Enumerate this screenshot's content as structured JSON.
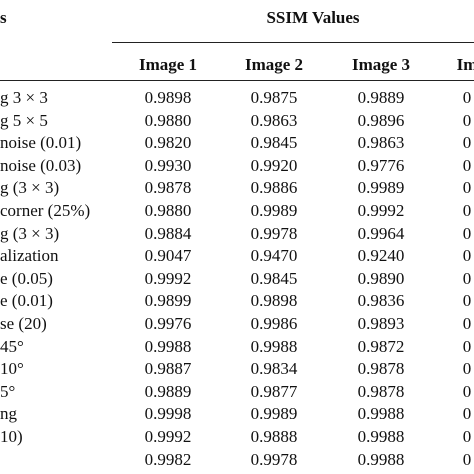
{
  "table": {
    "header": {
      "first": "s",
      "span": "SSIM Values"
    },
    "columns": [
      "Image 1",
      "Image 2",
      "Image 3",
      "Im"
    ],
    "rows": [
      {
        "label": "g 3 × 3",
        "values": [
          "0.9898",
          "0.9875",
          "0.9889",
          "0"
        ]
      },
      {
        "label": "g 5 × 5",
        "values": [
          "0.9880",
          "0.9863",
          "0.9896",
          "0"
        ]
      },
      {
        "label": "noise (0.01)",
        "values": [
          "0.9820",
          "0.9845",
          "0.9863",
          "0"
        ]
      },
      {
        "label": "noise (0.03)",
        "values": [
          "0.9930",
          "0.9920",
          "0.9776",
          "0"
        ]
      },
      {
        "label": "g (3 × 3)",
        "values": [
          "0.9878",
          "0.9886",
          "0.9989",
          "0"
        ]
      },
      {
        "label": "corner (25%)",
        "values": [
          "0.9880",
          "0.9989",
          "0.9992",
          "0"
        ]
      },
      {
        "label": "g (3 × 3)",
        "values": [
          "0.9884",
          "0.9978",
          "0.9964",
          "0"
        ]
      },
      {
        "label": "alization",
        "values": [
          "0.9047",
          "0.9470",
          "0.9240",
          "0"
        ]
      },
      {
        "label": "e (0.05)",
        "values": [
          "0.9992",
          "0.9845",
          "0.9890",
          "0"
        ]
      },
      {
        "label": "e (0.01)",
        "values": [
          "0.9899",
          "0.9898",
          "0.9836",
          "0"
        ]
      },
      {
        "label": "se (20)",
        "values": [
          "0.9976",
          "0.9986",
          "0.9893",
          "0"
        ]
      },
      {
        "label": "45°",
        "values": [
          "0.9988",
          "0.9988",
          "0.9872",
          "0"
        ]
      },
      {
        "label": "10°",
        "values": [
          "0.9887",
          "0.9834",
          "0.9878",
          "0"
        ]
      },
      {
        "label": "5°",
        "values": [
          "0.9889",
          "0.9877",
          "0.9878",
          "0"
        ]
      },
      {
        "label": "ng",
        "values": [
          "0.9998",
          "0.9989",
          "0.9988",
          "0"
        ]
      },
      {
        "label": "10)",
        "values": [
          "0.9992",
          "0.9888",
          "0.9988",
          "0"
        ]
      },
      {
        "values": [
          "0.9982",
          "0.9978",
          "0.9988",
          "0"
        ]
      }
    ]
  }
}
